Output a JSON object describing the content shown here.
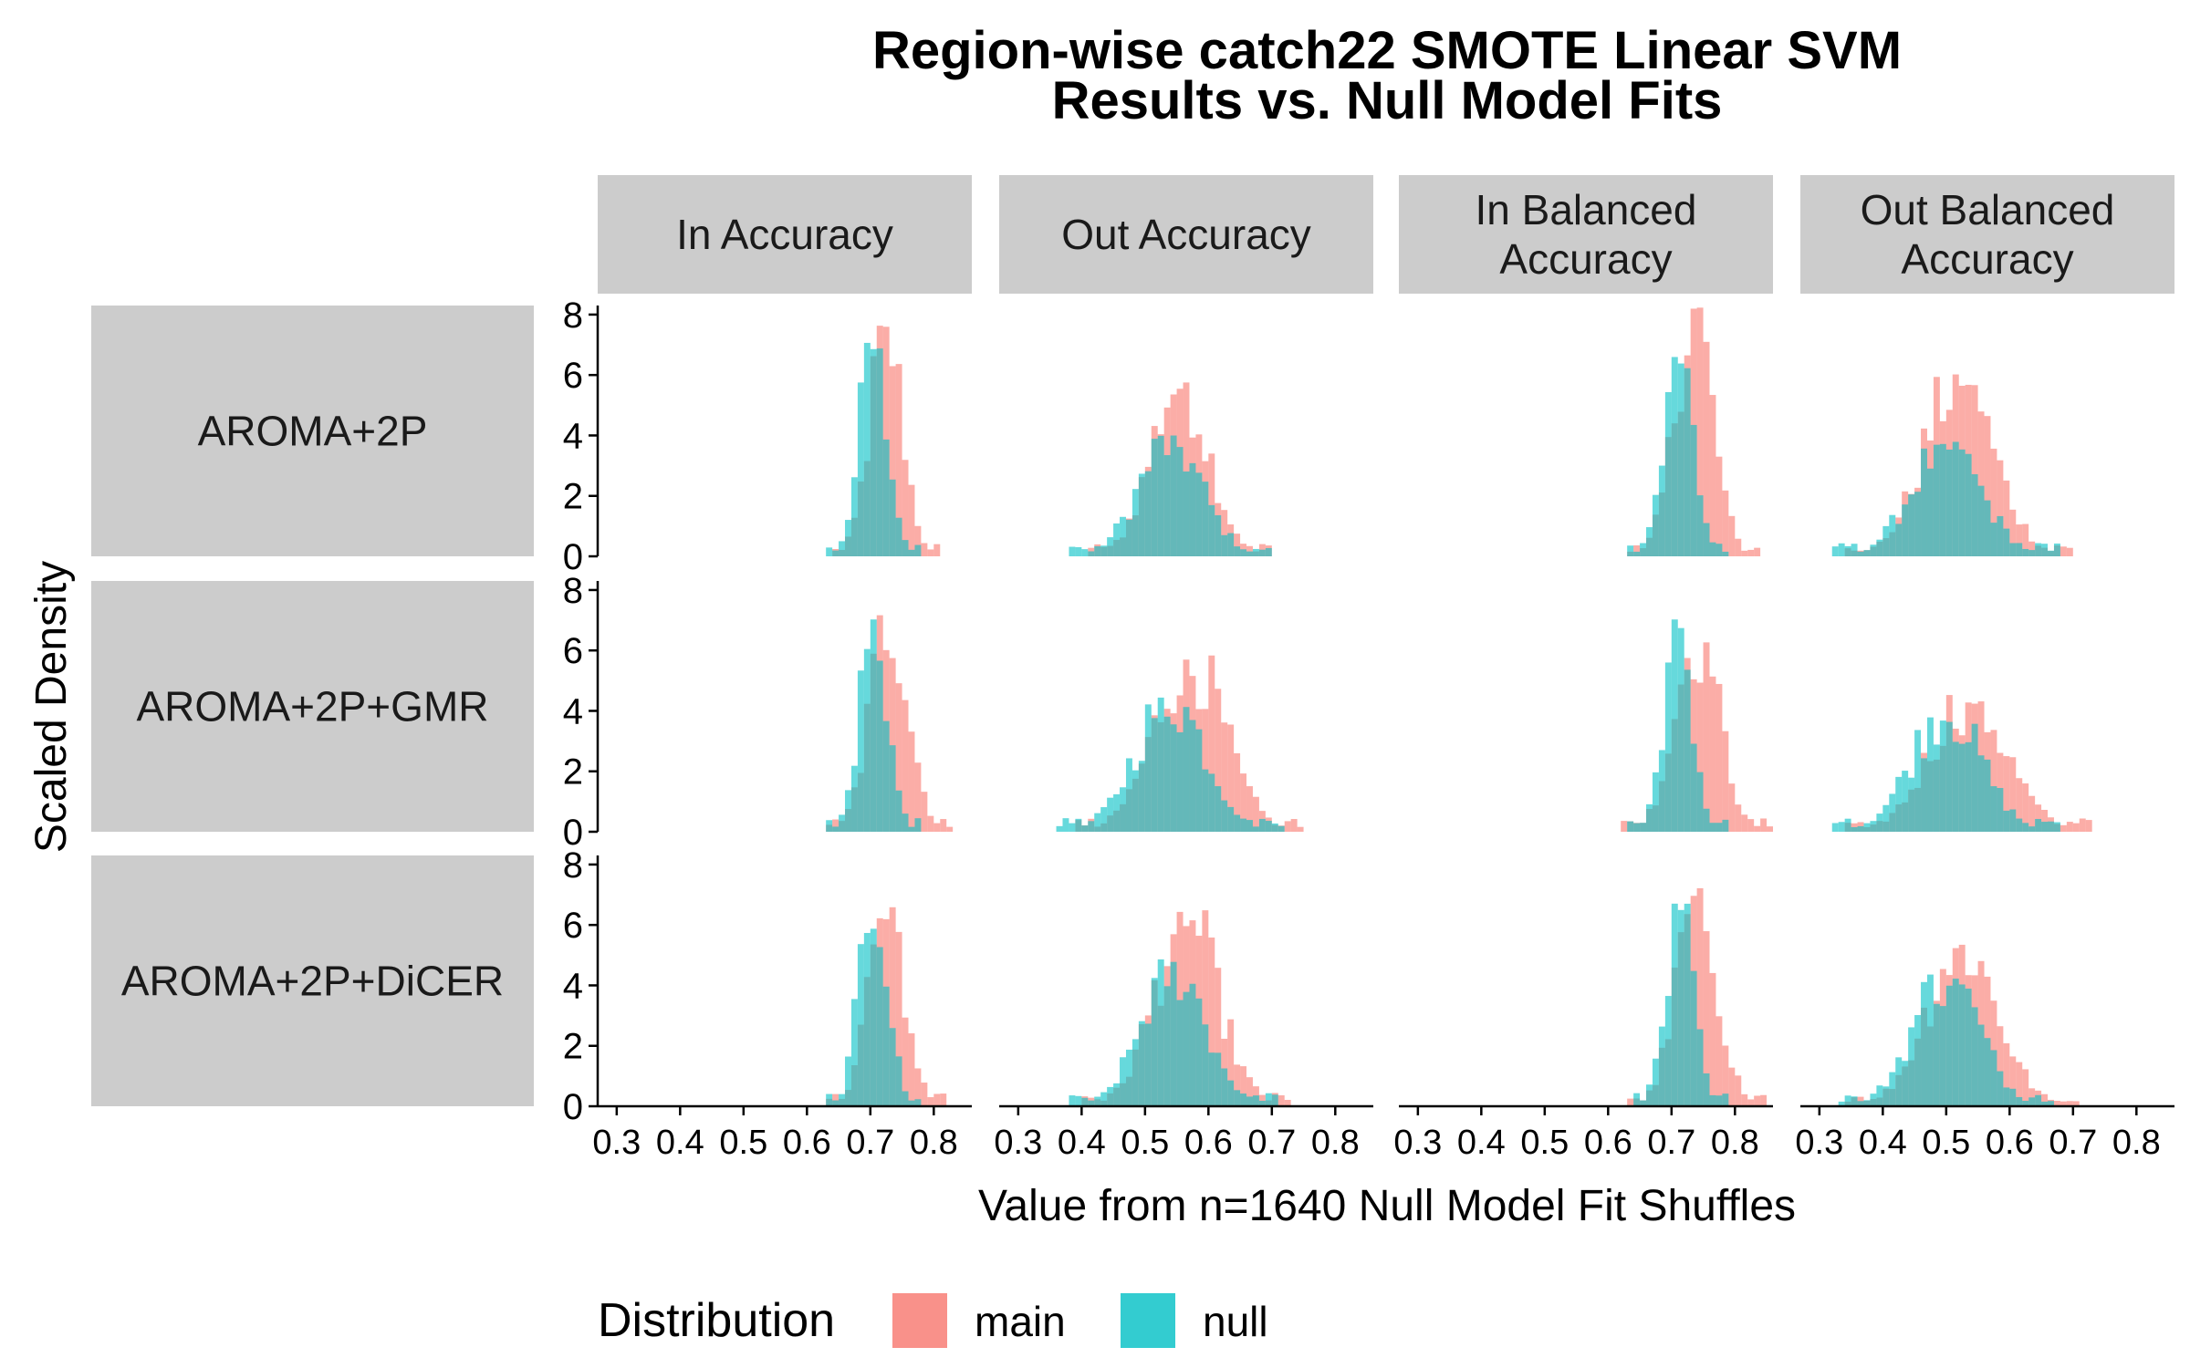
{
  "chart_data": {
    "type": "histogram-facet",
    "title_lines": [
      "Region-wise catch22 SMOTE Linear SVM",
      "Results vs. Null Model Fits"
    ],
    "xlabel": "Value from n=1640 Null Model Fit Shuffles",
    "ylabel": "Scaled Density",
    "column_labels": [
      [
        "In Accuracy"
      ],
      [
        "Out Accuracy"
      ],
      [
        "In Balanced",
        "Accuracy"
      ],
      [
        "Out Balanced",
        "Accuracy"
      ]
    ],
    "row_labels": [
      "AROMA+2P",
      "AROMA+2P+GMR",
      "AROMA+2P+DiCER"
    ],
    "xlim": [
      0.27,
      0.86
    ],
    "ylim": [
      0,
      8.3
    ],
    "x_ticks": [
      0.3,
      0.4,
      0.5,
      0.6,
      0.7,
      0.8
    ],
    "x_tick_labels": [
      "0.3",
      "0.4",
      "0.5",
      "0.6",
      "0.7",
      "0.8"
    ],
    "y_ticks": [
      0,
      2,
      4,
      6,
      8
    ],
    "y_tick_labels": [
      "0",
      "2",
      "4",
      "6",
      "8"
    ],
    "legend": {
      "title": "Distribution",
      "position": "bottom",
      "items": [
        {
          "name": "main",
          "color": "#F8766D"
        },
        {
          "name": "null",
          "color": "#00BFC4"
        }
      ]
    },
    "bin_width": 0.01,
    "opacity": 0.6,
    "panels": [
      [
        {
          "main": {
            "mean": 0.725,
            "sd": 0.026,
            "peak": 7.8
          },
          "null": {
            "mean": 0.705,
            "sd": 0.022,
            "peak": 7.5
          }
        },
        {
          "main": {
            "mean": 0.555,
            "sd": 0.045,
            "peak": 6.1
          },
          "null": {
            "mean": 0.54,
            "sd": 0.05,
            "peak": 4.0
          }
        },
        {
          "main": {
            "mean": 0.735,
            "sd": 0.03,
            "peak": 8.5
          },
          "null": {
            "mean": 0.71,
            "sd": 0.024,
            "peak": 6.8
          }
        },
        {
          "main": {
            "mean": 0.52,
            "sd": 0.055,
            "peak": 6.1
          },
          "null": {
            "mean": 0.5,
            "sd": 0.055,
            "peak": 3.8
          }
        }
      ],
      [
        {
          "main": {
            "mean": 0.73,
            "sd": 0.03,
            "peak": 7.5
          },
          "null": {
            "mean": 0.705,
            "sd": 0.022,
            "peak": 7.3
          }
        },
        {
          "main": {
            "mean": 0.57,
            "sd": 0.055,
            "peak": 6.0
          },
          "null": {
            "mean": 0.54,
            "sd": 0.055,
            "peak": 4.6
          }
        },
        {
          "main": {
            "mean": 0.74,
            "sd": 0.035,
            "peak": 6.9
          },
          "null": {
            "mean": 0.71,
            "sd": 0.022,
            "peak": 7.2
          }
        },
        {
          "main": {
            "mean": 0.535,
            "sd": 0.06,
            "peak": 4.6
          },
          "null": {
            "mean": 0.5,
            "sd": 0.055,
            "peak": 4.2
          }
        }
      ],
      [
        {
          "main": {
            "mean": 0.725,
            "sd": 0.028,
            "peak": 6.8
          },
          "null": {
            "mean": 0.705,
            "sd": 0.022,
            "peak": 7.5
          }
        },
        {
          "main": {
            "mean": 0.565,
            "sd": 0.05,
            "peak": 6.5
          },
          "null": {
            "mean": 0.545,
            "sd": 0.05,
            "peak": 4.9
          }
        },
        {
          "main": {
            "mean": 0.74,
            "sd": 0.032,
            "peak": 7.3
          },
          "null": {
            "mean": 0.712,
            "sd": 0.022,
            "peak": 6.9
          }
        },
        {
          "main": {
            "mean": 0.525,
            "sd": 0.055,
            "peak": 5.6
          },
          "null": {
            "mean": 0.5,
            "sd": 0.052,
            "peak": 4.6
          }
        }
      ]
    ]
  }
}
